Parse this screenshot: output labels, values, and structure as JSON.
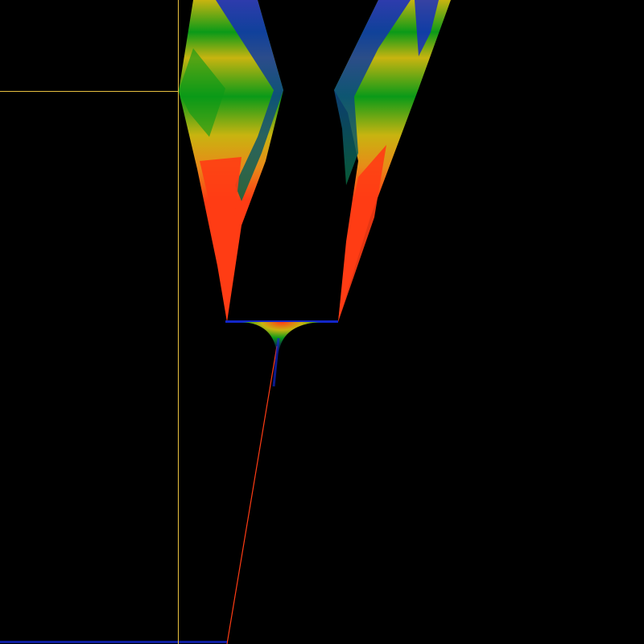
{
  "colors": {
    "background": "#000000",
    "crosshair": "#e8c040",
    "palette": [
      "#1226c8",
      "#0a9a18",
      "#6ec414",
      "#c8b410",
      "#e88a18",
      "#ff3c14"
    ]
  },
  "view": {
    "type": "bifurcation-style density plot",
    "crosshair": "visible"
  }
}
